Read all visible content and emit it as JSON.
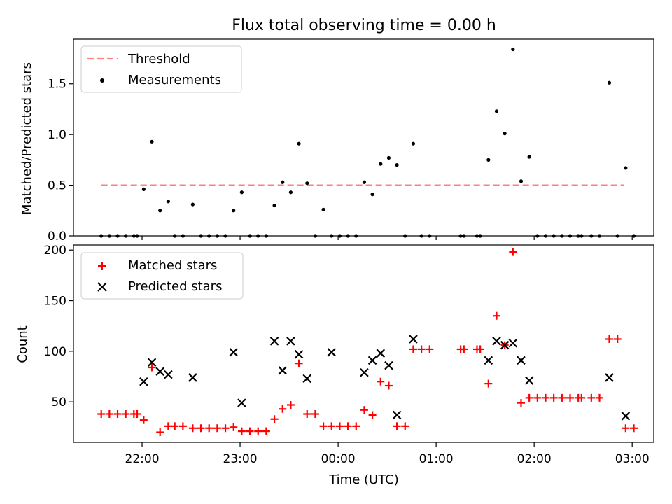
{
  "title": "Flux total observing time = 0.00 h",
  "chart_data": [
    {
      "type": "scatter",
      "ylabel": "Matched/Predicted stars",
      "xlabel": "",
      "x_ticks": [
        {
          "label": "",
          "hours": 22.0
        },
        {
          "label": "",
          "hours": 23.0
        },
        {
          "label": "",
          "hours": 24.0
        },
        {
          "label": "",
          "hours": 25.0
        },
        {
          "label": "",
          "hours": 26.0
        },
        {
          "label": "",
          "hours": 27.0
        }
      ],
      "ylim": [
        0,
        1.94
      ],
      "y_ticks": [
        "0.0",
        "0.5",
        "1.0",
        "1.5"
      ],
      "y_tick_values": [
        0,
        0.5,
        1.0,
        1.5
      ],
      "grid": false,
      "legend_position": "top-left",
      "legend": [
        {
          "label": "Threshold",
          "kind": "dashed-line",
          "color": "#ff7f7f"
        },
        {
          "label": "Measurements",
          "kind": "dot",
          "color": "#000000"
        }
      ],
      "threshold": {
        "value": 0.5,
        "x_start": "21:35",
        "x_end": "02:55",
        "color": "#ff7f7f"
      },
      "series": [
        {
          "kind": "dot",
          "color": "#000000",
          "points": [
            [
              "21:35",
              0
            ],
            [
              "21:40",
              0
            ],
            [
              "21:45",
              0
            ],
            [
              "21:50",
              0
            ],
            [
              "21:55",
              0
            ],
            [
              "21:57",
              0
            ],
            [
              "22:01",
              0.46
            ],
            [
              "22:06",
              0.93
            ],
            [
              "22:11",
              0.25
            ],
            [
              "22:16",
              0.34
            ],
            [
              "22:20",
              0
            ],
            [
              "22:25",
              0
            ],
            [
              "22:31",
              0.31
            ],
            [
              "22:36",
              0
            ],
            [
              "22:41",
              0
            ],
            [
              "22:46",
              0
            ],
            [
              "22:51",
              0
            ],
            [
              "22:56",
              0.25
            ],
            [
              "23:01",
              0.43
            ],
            [
              "23:06",
              0
            ],
            [
              "23:11",
              0
            ],
            [
              "23:16",
              0
            ],
            [
              "23:21",
              0.3
            ],
            [
              "23:26",
              0.53
            ],
            [
              "23:31",
              0.43
            ],
            [
              "23:36",
              0.91
            ],
            [
              "23:41",
              0.52
            ],
            [
              "23:46",
              0
            ],
            [
              "23:51",
              0.26
            ],
            [
              "23:56",
              0
            ],
            [
              "00:01",
              0
            ],
            [
              "00:06",
              0
            ],
            [
              "00:11",
              0
            ],
            [
              "00:16",
              0.53
            ],
            [
              "00:21",
              0.41
            ],
            [
              "00:26",
              0.71
            ],
            [
              "00:31",
              0.77
            ],
            [
              "00:36",
              0.7
            ],
            [
              "00:41",
              0
            ],
            [
              "00:46",
              0.91
            ],
            [
              "00:51",
              0
            ],
            [
              "00:56",
              0
            ],
            [
              "01:15",
              0
            ],
            [
              "01:17",
              0
            ],
            [
              "01:25",
              0
            ],
            [
              "01:27",
              0
            ],
            [
              "01:32",
              0.75
            ],
            [
              "01:37",
              1.23
            ],
            [
              "01:42",
              1.01
            ],
            [
              "01:47",
              1.84
            ],
            [
              "01:52",
              0.54
            ],
            [
              "01:57",
              0.78
            ],
            [
              "02:02",
              0
            ],
            [
              "02:07",
              0
            ],
            [
              "02:12",
              0
            ],
            [
              "02:17",
              0
            ],
            [
              "02:22",
              0
            ],
            [
              "02:27",
              0
            ],
            [
              "02:29",
              0
            ],
            [
              "02:35",
              0
            ],
            [
              "02:40",
              0
            ],
            [
              "02:46",
              1.51
            ],
            [
              "02:51",
              0
            ],
            [
              "02:56",
              0.67
            ],
            [
              "03:01",
              0
            ]
          ]
        }
      ]
    },
    {
      "type": "scatter",
      "ylabel": "Count",
      "xlabel": "Time (UTC)",
      "x_ticks": [
        {
          "label": "22:00",
          "hours": 22.0
        },
        {
          "label": "23:00",
          "hours": 23.0
        },
        {
          "label": "00:00",
          "hours": 24.0
        },
        {
          "label": "01:00",
          "hours": 25.0
        },
        {
          "label": "02:00",
          "hours": 26.0
        },
        {
          "label": "03:00",
          "hours": 27.0
        }
      ],
      "ylim": [
        10,
        205
      ],
      "y_ticks": [
        "50",
        "100",
        "150",
        "200"
      ],
      "y_tick_values": [
        50,
        100,
        150,
        200
      ],
      "grid": false,
      "legend_position": "top-left",
      "legend": [
        {
          "label": "Matched stars",
          "kind": "plus",
          "color": "#ff0000"
        },
        {
          "label": "Predicted stars",
          "kind": "cross",
          "color": "#000000"
        }
      ],
      "series": [
        {
          "kind": "plus",
          "color": "#ff0000",
          "points": [
            [
              "21:35",
              38
            ],
            [
              "21:40",
              38
            ],
            [
              "21:45",
              38
            ],
            [
              "21:50",
              38
            ],
            [
              "21:55",
              38
            ],
            [
              "21:57",
              38
            ],
            [
              "22:01",
              32
            ],
            [
              "22:06",
              84
            ],
            [
              "22:11",
              20
            ],
            [
              "22:16",
              26
            ],
            [
              "22:20",
              26
            ],
            [
              "22:25",
              26
            ],
            [
              "22:31",
              24
            ],
            [
              "22:36",
              24
            ],
            [
              "22:41",
              24
            ],
            [
              "22:46",
              24
            ],
            [
              "22:51",
              24
            ],
            [
              "22:56",
              25
            ],
            [
              "23:01",
              21
            ],
            [
              "23:06",
              21
            ],
            [
              "23:11",
              21
            ],
            [
              "23:16",
              21
            ],
            [
              "23:21",
              33
            ],
            [
              "23:26",
              43
            ],
            [
              "23:31",
              47
            ],
            [
              "23:36",
              88
            ],
            [
              "23:41",
              38
            ],
            [
              "23:46",
              38
            ],
            [
              "23:51",
              26
            ],
            [
              "23:56",
              26
            ],
            [
              "00:01",
              26
            ],
            [
              "00:06",
              26
            ],
            [
              "00:11",
              26
            ],
            [
              "00:16",
              42
            ],
            [
              "00:21",
              37
            ],
            [
              "00:26",
              70
            ],
            [
              "00:31",
              66
            ],
            [
              "00:36",
              26
            ],
            [
              "00:41",
              26
            ],
            [
              "00:46",
              102
            ],
            [
              "00:51",
              102
            ],
            [
              "00:56",
              102
            ],
            [
              "01:15",
              102
            ],
            [
              "01:17",
              102
            ],
            [
              "01:25",
              102
            ],
            [
              "01:27",
              102
            ],
            [
              "01:32",
              68
            ],
            [
              "01:37",
              135
            ],
            [
              "01:42",
              106
            ],
            [
              "01:47",
              198
            ],
            [
              "01:52",
              49
            ],
            [
              "01:57",
              54
            ],
            [
              "02:02",
              54
            ],
            [
              "02:07",
              54
            ],
            [
              "02:12",
              54
            ],
            [
              "02:17",
              54
            ],
            [
              "02:22",
              54
            ],
            [
              "02:27",
              54
            ],
            [
              "02:29",
              54
            ],
            [
              "02:35",
              54
            ],
            [
              "02:40",
              54
            ],
            [
              "02:46",
              112
            ],
            [
              "02:51",
              112
            ],
            [
              "02:56",
              24
            ],
            [
              "03:01",
              24
            ]
          ]
        },
        {
          "kind": "cross",
          "color": "#000000",
          "points": [
            [
              "22:01",
              70
            ],
            [
              "22:06",
              89
            ],
            [
              "22:11",
              80
            ],
            [
              "22:16",
              77
            ],
            [
              "22:31",
              74
            ],
            [
              "22:56",
              99
            ],
            [
              "23:01",
              49
            ],
            [
              "23:21",
              110
            ],
            [
              "23:26",
              81
            ],
            [
              "23:31",
              110
            ],
            [
              "23:36",
              97
            ],
            [
              "23:41",
              73
            ],
            [
              "23:56",
              99
            ],
            [
              "00:16",
              79
            ],
            [
              "00:21",
              91
            ],
            [
              "00:26",
              98
            ],
            [
              "00:31",
              86
            ],
            [
              "00:36",
              37
            ],
            [
              "00:46",
              112
            ],
            [
              "01:32",
              91
            ],
            [
              "01:37",
              110
            ],
            [
              "01:42",
              106
            ],
            [
              "01:47",
              108
            ],
            [
              "01:52",
              91
            ],
            [
              "01:57",
              71
            ],
            [
              "02:46",
              74
            ],
            [
              "02:56",
              36
            ]
          ]
        }
      ]
    }
  ]
}
